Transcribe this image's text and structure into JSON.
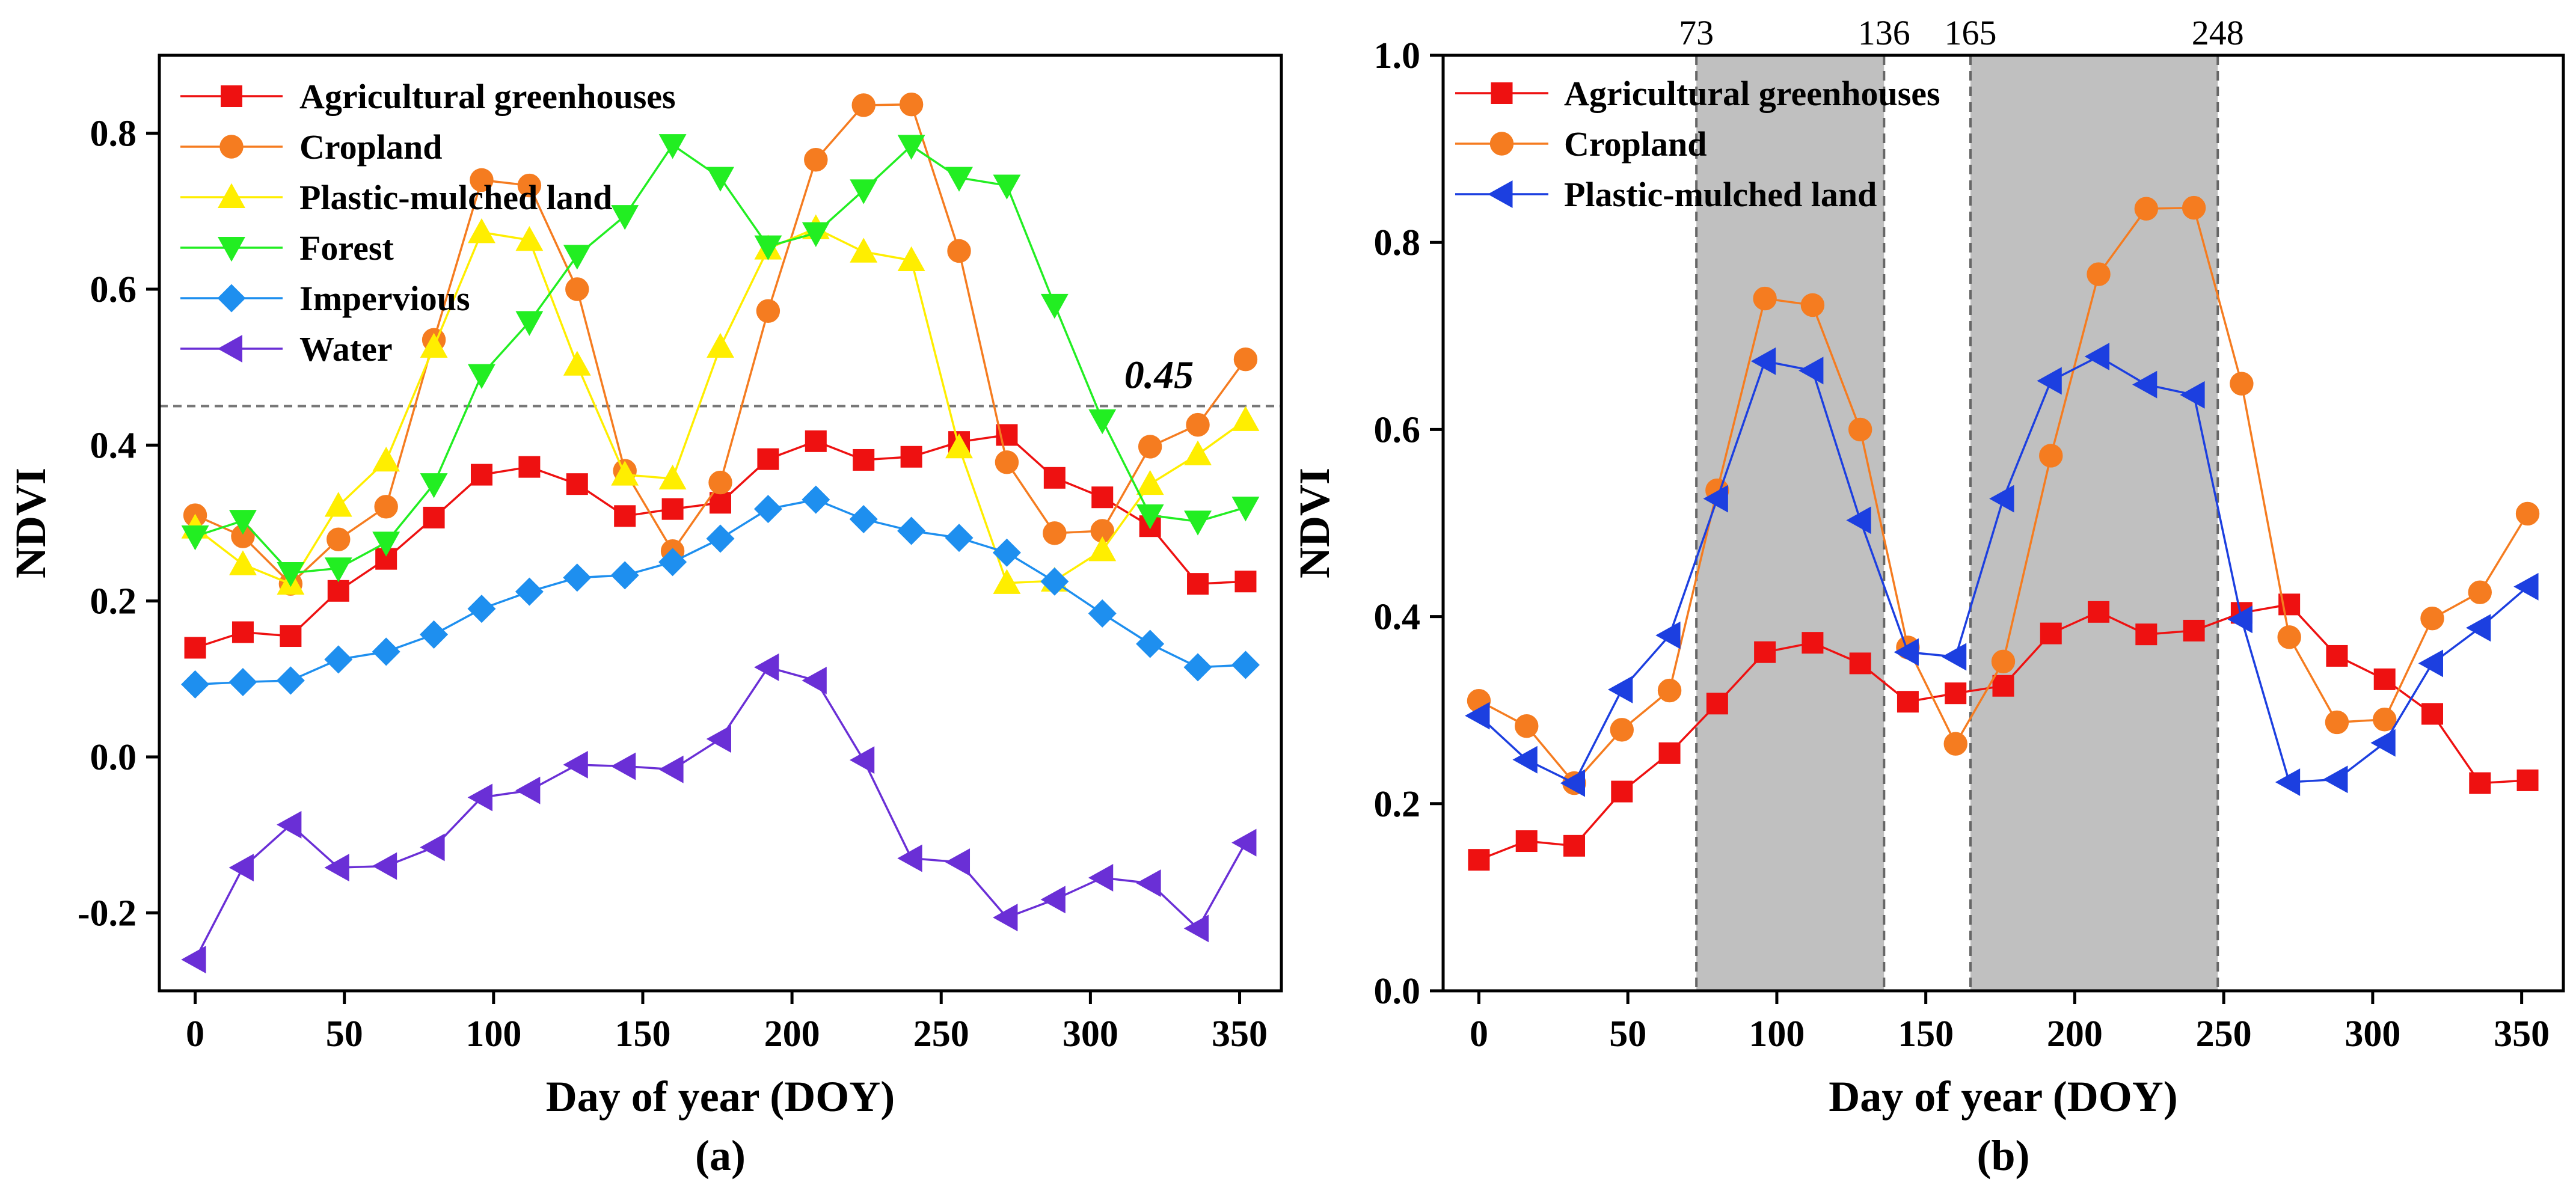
{
  "chart_data": [
    {
      "type": "line",
      "subtitle": "(a)",
      "xlabel": "Day of year (DOY)",
      "ylabel": "NDVI",
      "xlim": [
        -12,
        364
      ],
      "ylim": [
        -0.3,
        0.9
      ],
      "xticks": [
        0,
        50,
        100,
        150,
        200,
        250,
        300,
        350
      ],
      "yticks": [
        -0.2,
        0.0,
        0.2,
        0.4,
        0.6,
        0.8
      ],
      "ytick_labels": [
        "-0.2",
        "0.0",
        "0.2",
        "0.4",
        "0.6",
        "0.8"
      ],
      "legend_position": "top-left",
      "threshold": {
        "value": 0.45,
        "label": "0.45"
      },
      "x": [
        0,
        16,
        32,
        48,
        64,
        80,
        96,
        112,
        128,
        144,
        160,
        176,
        192,
        208,
        224,
        240,
        256,
        272,
        288,
        304,
        320,
        336,
        352
      ],
      "series": [
        {
          "name": "Agricultural greenhouses",
          "color": "#ee1111",
          "marker": "square",
          "values": [
            0.14,
            0.16,
            0.155,
            0.213,
            0.254,
            0.307,
            0.362,
            0.372,
            0.35,
            0.309,
            0.318,
            0.326,
            0.382,
            0.405,
            0.381,
            0.385,
            0.404,
            0.413,
            0.358,
            0.333,
            0.296,
            0.222,
            0.225
          ]
        },
        {
          "name": "Cropland",
          "color": "#f57c20",
          "marker": "circle",
          "values": [
            0.31,
            0.283,
            0.222,
            0.279,
            0.321,
            0.535,
            0.74,
            0.733,
            0.6,
            0.367,
            0.264,
            0.352,
            0.572,
            0.766,
            0.836,
            0.837,
            0.649,
            0.378,
            0.287,
            0.29,
            0.398,
            0.426,
            0.51
          ]
        },
        {
          "name": "Plastic-mulched land",
          "color": "#ffee00",
          "marker": "triangle-up",
          "values": [
            0.294,
            0.247,
            0.222,
            0.322,
            0.38,
            0.526,
            0.673,
            0.663,
            0.503,
            0.362,
            0.357,
            0.526,
            0.652,
            0.678,
            0.648,
            0.637,
            0.397,
            0.223,
            0.226,
            0.265,
            0.35,
            0.388,
            0.432
          ]
        },
        {
          "name": "Forest",
          "color": "#22ee22",
          "marker": "triangle-down",
          "values": [
            0.283,
            0.303,
            0.236,
            0.242,
            0.275,
            0.35,
            0.49,
            0.558,
            0.643,
            0.694,
            0.785,
            0.743,
            0.655,
            0.672,
            0.727,
            0.784,
            0.743,
            0.733,
            0.58,
            0.432,
            0.31,
            0.302,
            0.32
          ]
        },
        {
          "name": "Impervious",
          "color": "#1e8fef",
          "marker": "diamond",
          "values": [
            0.093,
            0.096,
            0.098,
            0.125,
            0.135,
            0.157,
            0.19,
            0.212,
            0.23,
            0.233,
            0.25,
            0.28,
            0.318,
            0.33,
            0.305,
            0.29,
            0.281,
            0.262,
            0.225,
            0.184,
            0.145,
            0.115,
            0.118
          ]
        },
        {
          "name": "Water",
          "color": "#6a2fd6",
          "marker": "triangle-left",
          "values": [
            -0.26,
            -0.142,
            -0.087,
            -0.142,
            -0.14,
            -0.116,
            -0.052,
            -0.043,
            -0.01,
            -0.012,
            -0.016,
            0.023,
            0.115,
            0.098,
            -0.004,
            -0.13,
            -0.135,
            -0.206,
            -0.183,
            -0.155,
            -0.162,
            -0.22,
            -0.11
          ]
        }
      ]
    },
    {
      "type": "line",
      "subtitle": "(b)",
      "xlabel": "Day of year (DOY)",
      "ylabel": "NDVI",
      "xlim": [
        -12,
        364
      ],
      "ylim": [
        0.0,
        1.0
      ],
      "xticks": [
        0,
        50,
        100,
        150,
        200,
        250,
        300,
        350
      ],
      "yticks": [
        0.0,
        0.2,
        0.4,
        0.6,
        0.8,
        1.0
      ],
      "ytick_labels": [
        "0.0",
        "0.2",
        "0.4",
        "0.6",
        "0.8",
        "1.0"
      ],
      "legend_position": "top-left",
      "shaded_ranges": [
        [
          73,
          136
        ],
        [
          165,
          248
        ]
      ],
      "range_boundary_labels": [
        "73",
        "136",
        "165",
        "248"
      ],
      "x": [
        0,
        16,
        32,
        48,
        64,
        80,
        96,
        112,
        128,
        144,
        160,
        176,
        192,
        208,
        224,
        240,
        256,
        272,
        288,
        304,
        320,
        336,
        352
      ],
      "series": [
        {
          "name": "Agricultural greenhouses",
          "color": "#ee1111",
          "marker": "square",
          "values": [
            0.14,
            0.16,
            0.155,
            0.213,
            0.254,
            0.307,
            0.362,
            0.372,
            0.35,
            0.309,
            0.318,
            0.326,
            0.382,
            0.405,
            0.381,
            0.385,
            0.404,
            0.413,
            0.358,
            0.333,
            0.296,
            0.222,
            0.225
          ]
        },
        {
          "name": "Cropland",
          "color": "#f57c20",
          "marker": "circle",
          "values": [
            0.31,
            0.283,
            0.222,
            0.279,
            0.321,
            0.535,
            0.74,
            0.733,
            0.6,
            0.367,
            0.264,
            0.352,
            0.572,
            0.766,
            0.836,
            0.837,
            0.649,
            0.378,
            0.287,
            0.29,
            0.398,
            0.426,
            0.51
          ]
        },
        {
          "name": "Plastic-mulched land",
          "color": "#1c3fe0",
          "marker": "triangle-left",
          "values": [
            0.294,
            0.247,
            0.222,
            0.322,
            0.38,
            0.526,
            0.673,
            0.663,
            0.503,
            0.362,
            0.357,
            0.526,
            0.652,
            0.678,
            0.648,
            0.637,
            0.397,
            0.223,
            0.226,
            0.265,
            0.35,
            0.388,
            0.432
          ]
        }
      ]
    }
  ]
}
